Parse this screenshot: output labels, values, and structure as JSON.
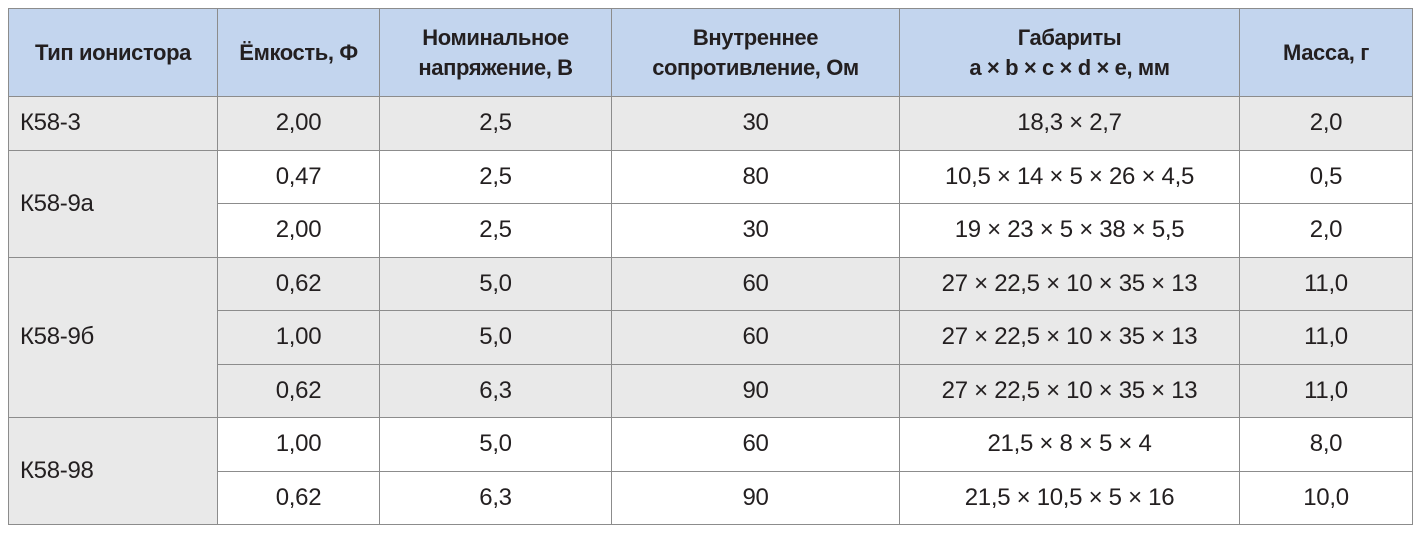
{
  "table": {
    "headers": [
      {
        "lines": [
          "Тип ионистора"
        ]
      },
      {
        "lines": [
          "Ёмкость, Ф"
        ]
      },
      {
        "lines": [
          "Номинальное",
          "напряжение, В"
        ]
      },
      {
        "lines": [
          "Внутреннее",
          "сопротивление, Ом"
        ]
      },
      {
        "lines": [
          "Габариты",
          "a × b × c × d × e, мм"
        ]
      },
      {
        "lines": [
          "Масса, г"
        ]
      }
    ],
    "groups": [
      {
        "type": "К58-3",
        "rows": [
          {
            "capacity": "2,00",
            "voltage": "2,5",
            "resistance": "30",
            "dimensions": "18,3 × 2,7",
            "mass": "2,0"
          }
        ]
      },
      {
        "type": "К58-9а",
        "rows": [
          {
            "capacity": "0,47",
            "voltage": "2,5",
            "resistance": "80",
            "dimensions": "10,5 × 14 × 5 × 26 × 4,5",
            "mass": "0,5"
          },
          {
            "capacity": "2,00",
            "voltage": "2,5",
            "resistance": "30",
            "dimensions": "19 × 23 × 5 × 38 × 5,5",
            "mass": "2,0"
          }
        ]
      },
      {
        "type": "К58-9б",
        "rows": [
          {
            "capacity": "0,62",
            "voltage": "5,0",
            "resistance": "60",
            "dimensions": "27 × 22,5 × 10 × 35 × 13",
            "mass": "11,0"
          },
          {
            "capacity": "1,00",
            "voltage": "5,0",
            "resistance": "60",
            "dimensions": "27 × 22,5 × 10 × 35 × 13",
            "mass": "11,0"
          },
          {
            "capacity": "0,62",
            "voltage": "6,3",
            "resistance": "90",
            "dimensions": "27 × 22,5 × 10 × 35 × 13",
            "mass": "11,0"
          }
        ]
      },
      {
        "type": "К58-98",
        "rows": [
          {
            "capacity": "1,00",
            "voltage": "5,0",
            "resistance": "60",
            "dimensions": "21,5 × 8 × 5 × 4",
            "mass": "8,0"
          },
          {
            "capacity": "0,62",
            "voltage": "6,3",
            "resistance": "90",
            "dimensions": "21,5 × 10,5 × 5 × 16",
            "mass": "10,0"
          }
        ]
      }
    ],
    "colors": {
      "header_bg": "#c3d5ee",
      "shaded_row_bg": "#e9e9e9",
      "border": "#8c8c8c"
    }
  }
}
